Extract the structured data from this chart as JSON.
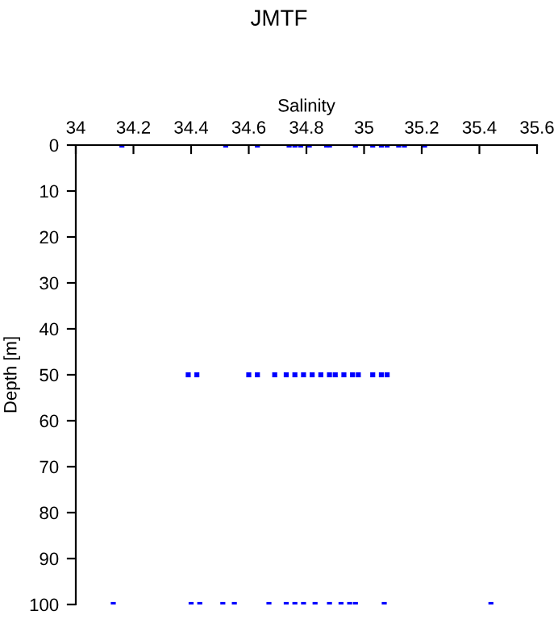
{
  "chart_data": {
    "type": "scatter",
    "title": "JMTF",
    "xlabel": "Salinity",
    "ylabel": "Depth [m]",
    "x": [
      34.16,
      34.52,
      34.63,
      34.74,
      34.76,
      34.78,
      34.81,
      34.87,
      34.88,
      34.97,
      35.03,
      35.06,
      35.08,
      35.12,
      35.14,
      35.21,
      34.39,
      34.42,
      34.6,
      34.63,
      34.69,
      34.73,
      34.76,
      34.79,
      34.82,
      34.85,
      34.88,
      34.9,
      34.93,
      34.96,
      34.98,
      35.03,
      35.06,
      35.08,
      34.13,
      34.4,
      34.43,
      34.51,
      34.55,
      34.67,
      34.73,
      34.76,
      34.79,
      34.83,
      34.88,
      34.92,
      34.95,
      34.97,
      35.07,
      35.44
    ],
    "series": [
      {
        "color": "#0000ff",
        "values": [
          0,
          0,
          0,
          0,
          0,
          0,
          0,
          0,
          0,
          0,
          0,
          0,
          0,
          0,
          0,
          0,
          50,
          50,
          50,
          50,
          50,
          50,
          50,
          50,
          50,
          50,
          50,
          50,
          50,
          50,
          50,
          50,
          50,
          50,
          100,
          100,
          100,
          100,
          100,
          100,
          100,
          100,
          100,
          100,
          100,
          100,
          100,
          100,
          100,
          100
        ]
      }
    ],
    "xlim": [
      34,
      35.6
    ],
    "xticks": [
      34,
      34.2,
      34.4,
      34.6,
      34.8,
      35,
      35.2,
      35.4,
      35.6
    ],
    "ylim": [
      100,
      0
    ],
    "yticks": [
      0,
      10,
      20,
      30,
      40,
      50,
      60,
      70,
      80,
      90,
      100
    ],
    "marker": "square",
    "grid": false,
    "legend": false
  }
}
